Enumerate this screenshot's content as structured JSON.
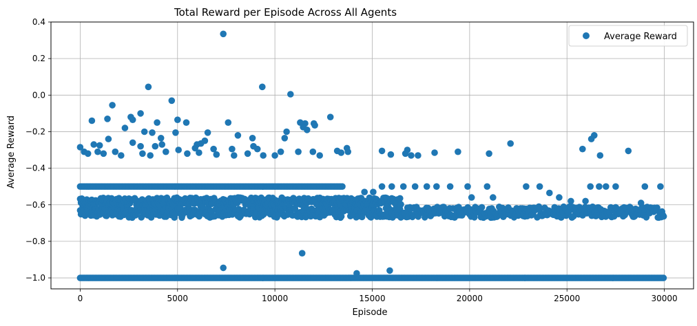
{
  "chart_data": {
    "type": "scatter",
    "title": "Total Reward per Episode Across All Agents",
    "xlabel": "Episode",
    "ylabel": "Average Reward",
    "xlim": [
      -1500,
      31500
    ],
    "ylim": [
      -1.06,
      0.4
    ],
    "xticks": [
      0,
      5000,
      10000,
      15000,
      20000,
      25000,
      30000
    ],
    "xtick_labels": [
      "0",
      "5000",
      "10000",
      "15000",
      "20000",
      "25000",
      "30000"
    ],
    "yticks": [
      0.4,
      0.2,
      0.0,
      -0.2,
      -0.4,
      -0.6,
      -0.8,
      -1.0
    ],
    "ytick_labels": [
      "0.4",
      "0.2",
      "0.0",
      "−0.2",
      "−0.4",
      "−0.6",
      "−0.8",
      "−1.0"
    ],
    "grid": true,
    "legend_position": "top-right",
    "series": [
      {
        "name": "Average Reward",
        "color": "#1f77b4",
        "dense_bands": [
          {
            "y": -1.0,
            "x_from": 0,
            "x_to": 30000
          },
          {
            "y": -0.64,
            "y_spread": 0.03,
            "x_from": 0,
            "x_to": 30000
          },
          {
            "y": -0.58,
            "y_spread": 0.02,
            "x_from": 0,
            "x_to": 16500
          },
          {
            "y": -0.5,
            "x_from": 0,
            "x_to": 13500
          }
        ],
        "points": [
          [
            7350,
            0.335
          ],
          [
            3500,
            0.045
          ],
          [
            9350,
            0.045
          ],
          [
            10800,
            0.005
          ],
          [
            4700,
            -0.03
          ],
          [
            1650,
            -0.055
          ],
          [
            3100,
            -0.1
          ],
          [
            2600,
            -0.12
          ],
          [
            12850,
            -0.12
          ],
          [
            2700,
            -0.135
          ],
          [
            600,
            -0.14
          ],
          [
            1400,
            -0.13
          ],
          [
            5000,
            -0.135
          ],
          [
            7600,
            -0.15
          ],
          [
            11300,
            -0.15
          ],
          [
            11550,
            -0.155
          ],
          [
            12000,
            -0.155
          ],
          [
            3950,
            -0.15
          ],
          [
            5450,
            -0.15
          ],
          [
            12050,
            -0.165
          ],
          [
            11450,
            -0.175
          ],
          [
            11650,
            -0.19
          ],
          [
            2300,
            -0.18
          ],
          [
            3300,
            -0.2
          ],
          [
            3700,
            -0.205
          ],
          [
            4900,
            -0.205
          ],
          [
            6550,
            -0.205
          ],
          [
            10600,
            -0.2
          ],
          [
            8100,
            -0.22
          ],
          [
            8850,
            -0.235
          ],
          [
            10500,
            -0.235
          ],
          [
            26400,
            -0.22
          ],
          [
            26250,
            -0.24
          ],
          [
            1450,
            -0.24
          ],
          [
            4150,
            -0.235
          ],
          [
            6400,
            -0.25
          ],
          [
            2700,
            -0.26
          ],
          [
            22100,
            -0.265
          ],
          [
            6200,
            -0.265
          ],
          [
            6000,
            -0.27
          ],
          [
            700,
            -0.27
          ],
          [
            4200,
            -0.27
          ],
          [
            1000,
            -0.275
          ],
          [
            3100,
            -0.28
          ],
          [
            0,
            -0.285
          ],
          [
            3850,
            -0.28
          ],
          [
            8900,
            -0.28
          ],
          [
            5900,
            -0.29
          ],
          [
            9100,
            -0.295
          ],
          [
            13700,
            -0.29
          ],
          [
            5050,
            -0.3
          ],
          [
            6850,
            -0.295
          ],
          [
            7800,
            -0.295
          ],
          [
            25800,
            -0.295
          ],
          [
            11950,
            -0.31
          ],
          [
            13200,
            -0.305
          ],
          [
            15500,
            -0.305
          ],
          [
            16800,
            -0.3
          ],
          [
            19400,
            -0.31
          ],
          [
            28150,
            -0.305
          ],
          [
            200,
            -0.31
          ],
          [
            400,
            -0.32
          ],
          [
            900,
            -0.31
          ],
          [
            1200,
            -0.32
          ],
          [
            1800,
            -0.31
          ],
          [
            2100,
            -0.33
          ],
          [
            3200,
            -0.32
          ],
          [
            3600,
            -0.33
          ],
          [
            4400,
            -0.31
          ],
          [
            5500,
            -0.32
          ],
          [
            6100,
            -0.315
          ],
          [
            7000,
            -0.325
          ],
          [
            7900,
            -0.33
          ],
          [
            8600,
            -0.32
          ],
          [
            9400,
            -0.33
          ],
          [
            10000,
            -0.33
          ],
          [
            10300,
            -0.31
          ],
          [
            11200,
            -0.31
          ],
          [
            12300,
            -0.33
          ],
          [
            13400,
            -0.315
          ],
          [
            13750,
            -0.31
          ],
          [
            15950,
            -0.325
          ],
          [
            16700,
            -0.32
          ],
          [
            17000,
            -0.33
          ],
          [
            17350,
            -0.33
          ],
          [
            18200,
            -0.315
          ],
          [
            21000,
            -0.32
          ],
          [
            26700,
            -0.33
          ],
          [
            7350,
            -0.945
          ],
          [
            11400,
            -0.865
          ],
          [
            14200,
            -0.975
          ],
          [
            15900,
            -0.96
          ],
          [
            28800,
            -0.59
          ],
          [
            24600,
            -0.56
          ],
          [
            24100,
            -0.535
          ],
          [
            19900,
            -0.5
          ],
          [
            20900,
            -0.5
          ],
          [
            22900,
            -0.5
          ],
          [
            23600,
            -0.5
          ],
          [
            26200,
            -0.5
          ],
          [
            26650,
            -0.5
          ],
          [
            27000,
            -0.5
          ],
          [
            27500,
            -0.5
          ],
          [
            29000,
            -0.5
          ],
          [
            29800,
            -0.5
          ],
          [
            15500,
            -0.5
          ],
          [
            16000,
            -0.5
          ],
          [
            16600,
            -0.5
          ],
          [
            17200,
            -0.5
          ],
          [
            17800,
            -0.5
          ],
          [
            18300,
            -0.5
          ],
          [
            19000,
            -0.5
          ],
          [
            14600,
            -0.53
          ],
          [
            15050,
            -0.53
          ],
          [
            20100,
            -0.56
          ],
          [
            21200,
            -0.56
          ],
          [
            25200,
            -0.58
          ],
          [
            25950,
            -0.58
          ]
        ]
      }
    ]
  }
}
